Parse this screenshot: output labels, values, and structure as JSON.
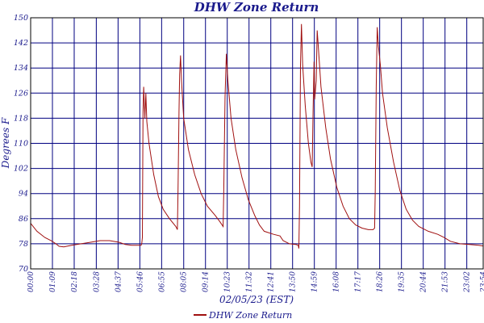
{
  "chart_data": {
    "type": "line",
    "title": "DHW Zone Return",
    "xlabel": "02/05/23 (EST)",
    "ylabel": "Degrees F",
    "ylim": [
      70,
      150
    ],
    "yticks": [
      "70",
      "78",
      "86",
      "94",
      "102",
      "110",
      "118",
      "126",
      "134",
      "142",
      "150"
    ],
    "xticks": [
      "00:00",
      "01:09",
      "02:18",
      "03:28",
      "04:37",
      "05:46",
      "06:55",
      "08:05",
      "09:14",
      "10:23",
      "11:32",
      "12:41",
      "13:50",
      "14:59",
      "16:08",
      "17:17",
      "18:26",
      "19:35",
      "20:44",
      "21:53",
      "23:02",
      "23:54"
    ],
    "grid": true,
    "legend_position": "bottom",
    "colors": {
      "series": "#a01010",
      "grid": "#000080",
      "text": "#1a1a8c"
    },
    "series": [
      {
        "name": "DHW Zone Return",
        "points": [
          [
            "00:00",
            84.5
          ],
          [
            "00:20",
            82.0
          ],
          [
            "00:45",
            80.0
          ],
          [
            "01:05",
            79.0
          ],
          [
            "01:20",
            78.0
          ],
          [
            "01:30",
            77.2
          ],
          [
            "01:45",
            77.0
          ],
          [
            "02:10",
            77.5
          ],
          [
            "02:40",
            78.0
          ],
          [
            "03:10",
            78.5
          ],
          [
            "03:40",
            79.0
          ],
          [
            "04:10",
            79.0
          ],
          [
            "04:40",
            78.5
          ],
          [
            "05:00",
            77.8
          ],
          [
            "05:20",
            77.5
          ],
          [
            "05:50",
            77.5
          ],
          [
            "05:52",
            78.0
          ],
          [
            "05:54",
            80.0
          ],
          [
            "05:56",
            120.0
          ],
          [
            "05:58",
            128.0
          ],
          [
            "06:02",
            118.0
          ],
          [
            "06:05",
            126.0
          ],
          [
            "06:08",
            117.0
          ],
          [
            "06:15",
            110.0
          ],
          [
            "06:30",
            100.0
          ],
          [
            "06:45",
            93.0
          ],
          [
            "07:00",
            89.0
          ],
          [
            "07:20",
            86.0
          ],
          [
            "07:40",
            83.5
          ],
          [
            "07:45",
            82.5
          ],
          [
            "07:47",
            95.0
          ],
          [
            "07:50",
            120.0
          ],
          [
            "07:52",
            132.0
          ],
          [
            "07:55",
            138.0
          ],
          [
            "07:58",
            130.0
          ],
          [
            "08:05",
            118.0
          ],
          [
            "08:20",
            108.0
          ],
          [
            "08:40",
            100.0
          ],
          [
            "09:00",
            94.0
          ],
          [
            "09:20",
            90.0
          ],
          [
            "09:45",
            87.0
          ],
          [
            "10:00",
            85.0
          ],
          [
            "10:10",
            83.5
          ],
          [
            "10:12",
            95.0
          ],
          [
            "10:16",
            125.0
          ],
          [
            "10:20",
            138.5
          ],
          [
            "10:25",
            130.0
          ],
          [
            "10:35",
            118.0
          ],
          [
            "10:50",
            108.0
          ],
          [
            "11:10",
            99.0
          ],
          [
            "11:30",
            92.0
          ],
          [
            "11:50",
            87.0
          ],
          [
            "12:05",
            84.0
          ],
          [
            "12:20",
            82.0
          ],
          [
            "12:50",
            81.0
          ],
          [
            "13:10",
            80.5
          ],
          [
            "13:20",
            79.0
          ],
          [
            "13:40",
            78.0
          ],
          [
            "14:00",
            77.8
          ],
          [
            "14:08",
            77.5
          ],
          [
            "14:10",
            76.5
          ],
          [
            "14:12",
            90.0
          ],
          [
            "14:15",
            135.0
          ],
          [
            "14:18",
            148.0
          ],
          [
            "14:22",
            135.0
          ],
          [
            "14:30",
            122.0
          ],
          [
            "14:40",
            110.0
          ],
          [
            "14:48",
            104.0
          ],
          [
            "14:52",
            102.5
          ],
          [
            "14:55",
            120.0
          ],
          [
            "14:58",
            136.0
          ],
          [
            "15:00",
            124.0
          ],
          [
            "15:05",
            130.0
          ],
          [
            "15:08",
            146.0
          ],
          [
            "15:12",
            140.0
          ],
          [
            "15:20",
            128.0
          ],
          [
            "15:35",
            115.0
          ],
          [
            "15:50",
            105.0
          ],
          [
            "16:10",
            96.0
          ],
          [
            "16:30",
            90.0
          ],
          [
            "16:50",
            86.0
          ],
          [
            "17:10",
            84.0
          ],
          [
            "17:30",
            83.0
          ],
          [
            "17:50",
            82.5
          ],
          [
            "18:05",
            82.5
          ],
          [
            "18:10",
            83.0
          ],
          [
            "18:12",
            95.0
          ],
          [
            "18:15",
            128.0
          ],
          [
            "18:18",
            147.0
          ],
          [
            "18:22",
            141.0
          ],
          [
            "18:28",
            135.0
          ],
          [
            "18:35",
            126.0
          ],
          [
            "18:50",
            115.0
          ],
          [
            "19:10",
            104.0
          ],
          [
            "19:30",
            95.0
          ],
          [
            "19:50",
            89.0
          ],
          [
            "20:10",
            85.5
          ],
          [
            "20:30",
            83.5
          ],
          [
            "21:00",
            82.0
          ],
          [
            "21:30",
            81.0
          ],
          [
            "21:50",
            80.0
          ],
          [
            "22:10",
            78.8
          ],
          [
            "22:40",
            78.0
          ],
          [
            "23:10",
            77.8
          ],
          [
            "23:40",
            77.5
          ],
          [
            "23:54",
            77.3
          ]
        ]
      }
    ]
  }
}
